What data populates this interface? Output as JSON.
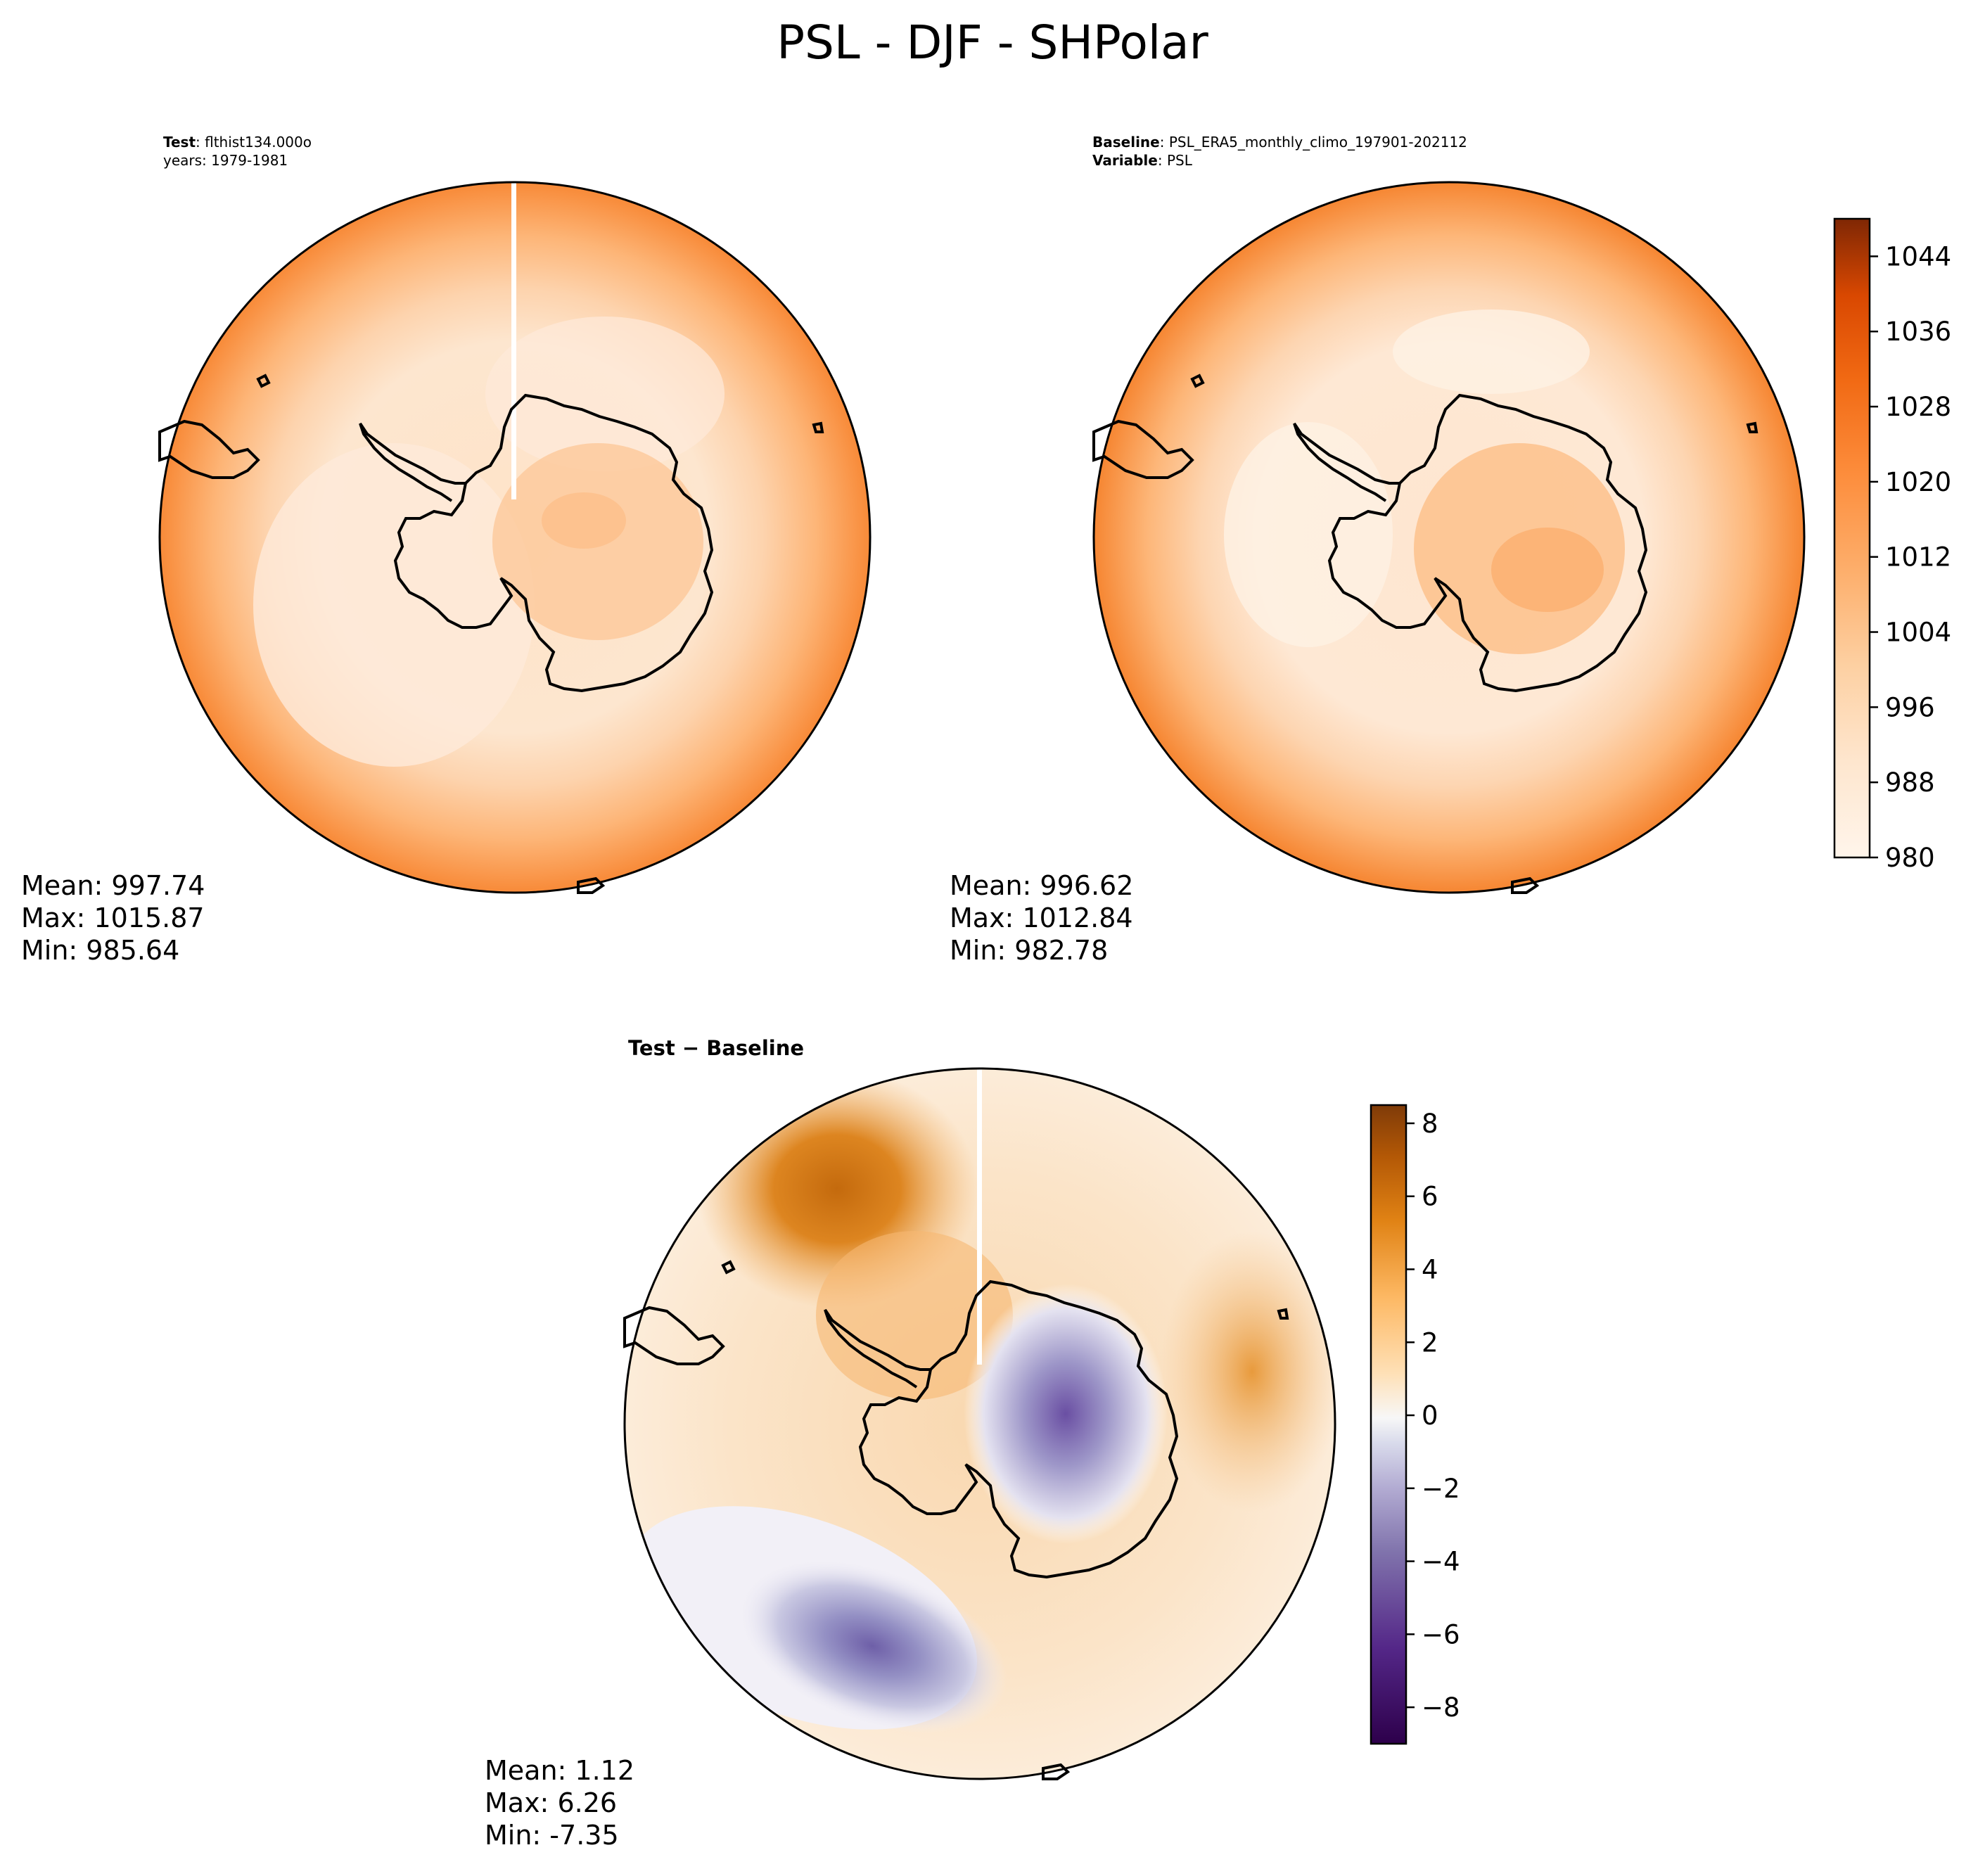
{
  "figure": {
    "title": "PSL - DJF - SHPolar"
  },
  "colors": {
    "orange_levels": [
      "#fff5eb",
      "#fee9d5",
      "#fddcba",
      "#fdc997",
      "#fdb171",
      "#fd9a4e",
      "#f7812c",
      "#e9630d",
      "#d04801",
      "#a63603",
      "#7f2704"
    ],
    "diff_neg": [
      "#3f007d",
      "#5a3d9a",
      "#7c76b6",
      "#a8a6cf",
      "#d4d4e8",
      "#f2f0f7"
    ],
    "diff_pos": [
      "#fbf0e2",
      "#fcd9ad",
      "#f7b267",
      "#e3861f",
      "#c0660b",
      "#7f3b08"
    ],
    "coast": "#000000"
  },
  "panels": {
    "test": {
      "label_bold": "Test",
      "label_text": ": flthist134.000o",
      "years": "years: 1979-1981",
      "mean": "Mean: 997.74",
      "max": "Max: 1015.87",
      "min": "Min: 985.64"
    },
    "baseline": {
      "label_bold": "Baseline",
      "label_text": ": PSL_ERA5_monthly_climo_197901-202112",
      "variable_bold": "Variable",
      "variable_text": ": PSL",
      "mean": "Mean: 996.62",
      "max": "Max: 1012.84",
      "min": "Min: 982.78"
    },
    "diff": {
      "title": "Test − Baseline",
      "mean": "Mean:  1.12",
      "max": "Max:  6.26",
      "min": "Min: -7.35"
    }
  },
  "chart_data": [
    {
      "type": "heatmap",
      "title": "Test",
      "variable": "PSL",
      "season": "DJF",
      "region": "SHPolar",
      "stats": {
        "mean": 997.74,
        "max": 1015.87,
        "min": 985.64
      }
    },
    {
      "type": "heatmap",
      "title": "Baseline",
      "variable": "PSL",
      "season": "DJF",
      "region": "SHPolar",
      "stats": {
        "mean": 996.62,
        "max": 1012.84,
        "min": 982.78
      }
    },
    {
      "type": "heatmap",
      "title": "Test − Baseline",
      "variable": "PSL",
      "stats": {
        "mean": 1.12,
        "max": 6.26,
        "min": -7.35
      }
    }
  ],
  "colorbars": {
    "main": {
      "range": [
        980,
        1048
      ],
      "ticks": [
        980,
        988,
        996,
        1004,
        1012,
        1020,
        1028,
        1036,
        1044
      ],
      "tick_labels": [
        "980",
        "988",
        "996",
        "1004",
        "1012",
        "1020",
        "1028",
        "1036",
        "1044"
      ]
    },
    "diff": {
      "range": [
        -9,
        8.5
      ],
      "ticks": [
        8,
        6,
        4,
        2,
        0,
        -2,
        -4,
        -6,
        -8
      ],
      "tick_labels": [
        "8",
        "6",
        "4",
        "2",
        "0",
        "−2",
        "−4",
        "−6",
        "−8"
      ]
    }
  }
}
